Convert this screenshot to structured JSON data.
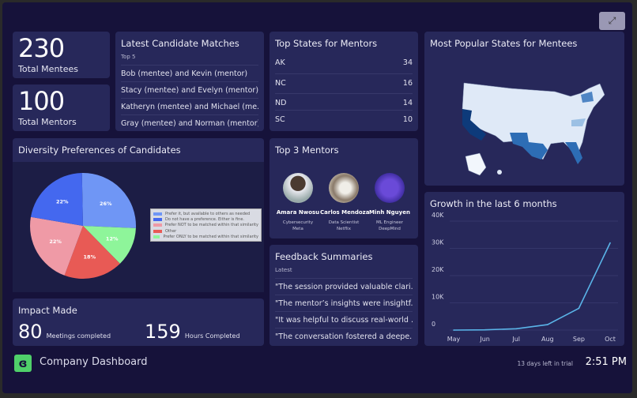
{
  "header": {
    "expand_icon": "expand-arrows-icon"
  },
  "stats": {
    "mentees": {
      "value": "230",
      "label": "Total Mentees"
    },
    "mentors": {
      "value": "100",
      "label": "Total Mentors"
    }
  },
  "matches": {
    "title": "Latest Candidate Matches",
    "subtitle": "Top 5",
    "items": [
      "Bob (mentee) and Kevin (mentor)",
      "Stacy (mentee) and Evelyn (mentor)",
      "Katheryn (mentee) and Michael (me...",
      "Gray (mentee) and Norman (mentor)"
    ]
  },
  "top_states": {
    "title": "Top States for Mentors",
    "rows": [
      {
        "state": "AK",
        "value": "34"
      },
      {
        "state": "NC",
        "value": "16"
      },
      {
        "state": "ND",
        "value": "14"
      },
      {
        "state": "SC",
        "value": "10"
      }
    ]
  },
  "map": {
    "title": "Most Popular States for Mentees",
    "colors": {
      "light": "#dfe9f7",
      "mid": "#9cc0e4",
      "dark": "#2d6db5",
      "darkest": "#0d3a7a"
    }
  },
  "diversity": {
    "title": "Diversity Preferences of Candidates"
  },
  "mentors_top": {
    "title": "Top 3 Mentors",
    "people": [
      {
        "name": "Amara Nwosu",
        "role": "Cybersecurity",
        "company": "Meta"
      },
      {
        "name": "Carlos Mendoza",
        "role": "Data Scientist",
        "company": "Netflix"
      },
      {
        "name": "Minh Nguyen",
        "role": "ML Engineer",
        "company": "DeepMind"
      }
    ]
  },
  "feedback": {
    "title": "Feedback Summaries",
    "subtitle": "Latest",
    "items": [
      "\"The session provided valuable clari...",
      "\"The mentor’s insights were insightf...",
      "\"It was helpful to discuss real-world ...",
      "\"The conversation fostered a deepe..."
    ]
  },
  "impact": {
    "title": "Impact Made",
    "meetings": {
      "value": "80",
      "label": "Meetings completed"
    },
    "hours": {
      "value": "159",
      "label": "Hours Completed"
    }
  },
  "footer": {
    "title": "Company Dashboard",
    "trial": "13 days left in trial",
    "time": "2:51 PM"
  },
  "chart_data": [
    {
      "type": "pie",
      "title": "Diversity Preferences of Candidates",
      "labels": [
        "Prefer it, but available to others as needed",
        "Prefer ONLY to be matched within that similarity",
        "Other",
        "Prefer NOT to be matched within that similarity",
        "Do not have a preference. Either is fine."
      ],
      "values": [
        26,
        12,
        18,
        22,
        22
      ],
      "colors": [
        "#6f96f5",
        "#8ef59a",
        "#e85a55",
        "#ef9aa6",
        "#4468ef"
      ],
      "legend_order": [
        0,
        4,
        3,
        2,
        1
      ],
      "legend": "right"
    },
    {
      "type": "line",
      "title": "Growth in the last 6 months",
      "categories": [
        "May",
        "Jun",
        "Jul",
        "Aug",
        "Sep",
        "Oct"
      ],
      "values": [
        0,
        100,
        500,
        2000,
        8000,
        32000
      ],
      "yticks": [
        "0",
        "10K",
        "20K",
        "30K",
        "40K"
      ],
      "ylim": [
        0,
        40000
      ],
      "color": "#5ab4e8",
      "grid": true
    }
  ]
}
